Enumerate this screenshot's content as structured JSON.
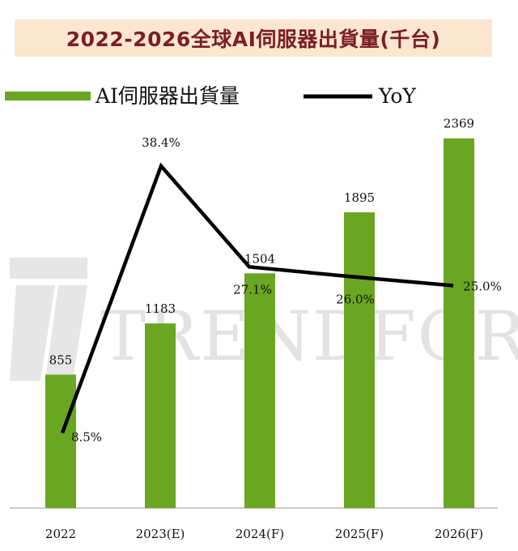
{
  "title": "2022-2026全球AI伺服器出貨量(千台)",
  "watermark": "TRENDFORCE",
  "colors": {
    "bar": "#6aa621",
    "line": "#000000",
    "title_bg": "#fbe6cf",
    "title_text": "#7a1f22",
    "watermark": "#e3e3e3"
  },
  "chart_data": {
    "type": "bar",
    "categories": [
      "2022",
      "2023(E)",
      "2024(F)",
      "2025(F)",
      "2026(F)"
    ],
    "series": [
      {
        "name": "AI伺服器出貨量",
        "type": "bar",
        "values": [
          855,
          1183,
          1504,
          1895,
          2369
        ],
        "labels": [
          "855",
          "1183",
          "1504",
          "1895",
          "2369"
        ]
      },
      {
        "name": "YoY",
        "type": "line",
        "values": [
          8.5,
          38.4,
          27.1,
          26.0,
          25.0
        ],
        "labels": [
          "8.5%",
          "38.4%",
          "27.1%",
          "26.0%",
          "25.0%"
        ]
      }
    ],
    "ylim_bars": [
      0,
      2500
    ],
    "ylim_line": [
      0,
      45
    ],
    "grid": false,
    "legend_position": "top-left"
  }
}
